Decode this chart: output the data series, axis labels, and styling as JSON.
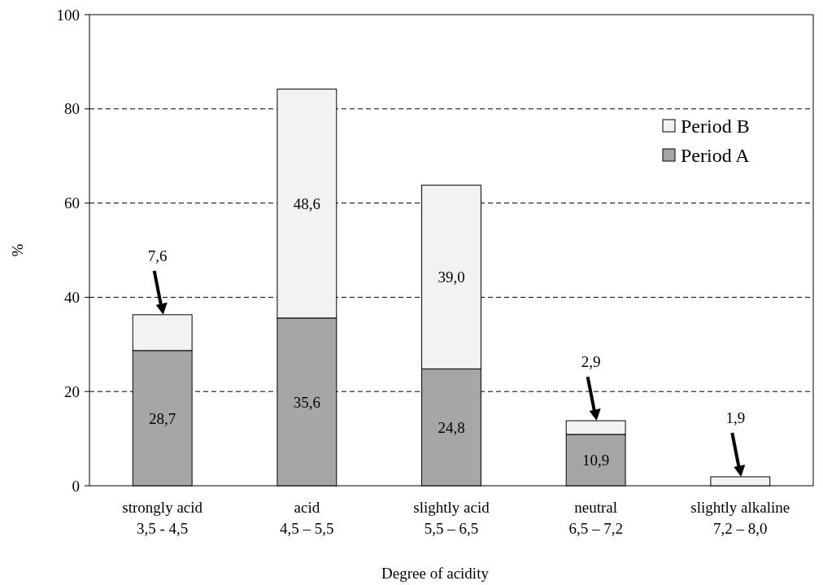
{
  "chart_data": {
    "type": "bar",
    "stacked": true,
    "xlabel": "Degree of acidity",
    "ylabel": "%",
    "categories": [
      "strongly acid\n3,5 - 4,5",
      "acid\n4,5 – 5,5",
      "slightly acid\n5,5 – 6,5",
      "neutral\n6,5 – 7,2",
      "slightly alkaline\n7,2 – 8,0"
    ],
    "series": [
      {
        "name": "Period A",
        "color": "#a6a6a6",
        "values": [
          28.7,
          35.6,
          24.8,
          10.9,
          null
        ],
        "value_labels": [
          "28,7",
          "35,6",
          "24,8",
          "10,9",
          null
        ]
      },
      {
        "name": "Period B",
        "color": "#f2f2f2",
        "values": [
          7.6,
          48.6,
          39.0,
          2.9,
          1.9
        ],
        "value_labels": [
          "7,6",
          "48,6",
          "39,0",
          "2,9",
          "1,9"
        ]
      }
    ],
    "ylim": [
      0,
      100
    ],
    "yticks": [
      0,
      20,
      40,
      60,
      80,
      100
    ],
    "grid": "y",
    "legend": "top right"
  }
}
